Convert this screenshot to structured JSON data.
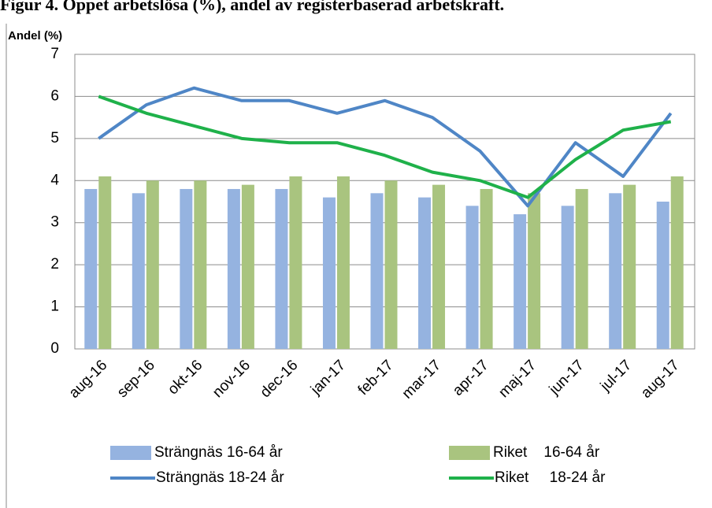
{
  "chart_data": {
    "type": "bar",
    "title": "Figur 4. Öppet arbetslösa (%), andel av registerbaserad arbetskraft.",
    "y_label": "Andel (%)",
    "categories": [
      "aug-16",
      "sep-16",
      "okt-16",
      "nov-16",
      "dec-16",
      "jan-17",
      "feb-17",
      "mar-17",
      "apr-17",
      "maj-17",
      "jun-17",
      "jul-17",
      "aug-17"
    ],
    "series": [
      {
        "name": "Strängnäs 16-64 år",
        "type": "bar",
        "color": "#95b3e0",
        "values": [
          3.8,
          3.7,
          3.8,
          3.8,
          3.8,
          3.6,
          3.7,
          3.6,
          3.4,
          3.2,
          3.4,
          3.7,
          3.5
        ]
      },
      {
        "name": "Riket    16-64 år",
        "type": "bar",
        "color": "#a9c47f",
        "values": [
          4.1,
          4.0,
          4.0,
          3.9,
          4.1,
          4.1,
          4.0,
          3.9,
          3.8,
          3.7,
          3.8,
          3.9,
          4.1
        ]
      },
      {
        "name": "Strängnäs 18-24 år",
        "type": "line",
        "color": "#4f86c6",
        "values": [
          5.0,
          5.8,
          6.2,
          5.9,
          5.9,
          5.6,
          5.9,
          5.5,
          4.7,
          3.4,
          4.9,
          4.1,
          5.6
        ]
      },
      {
        "name": "Riket     18-24 år",
        "type": "line",
        "color": "#1fb14a",
        "values": [
          6.0,
          5.6,
          5.3,
          5.0,
          4.9,
          4.9,
          4.6,
          4.2,
          4.0,
          3.6,
          4.5,
          5.2,
          5.4
        ]
      }
    ],
    "ylim": [
      0,
      7
    ],
    "yticks": [
      0,
      1,
      2,
      3,
      4,
      5,
      6,
      7
    ],
    "grid": true
  }
}
